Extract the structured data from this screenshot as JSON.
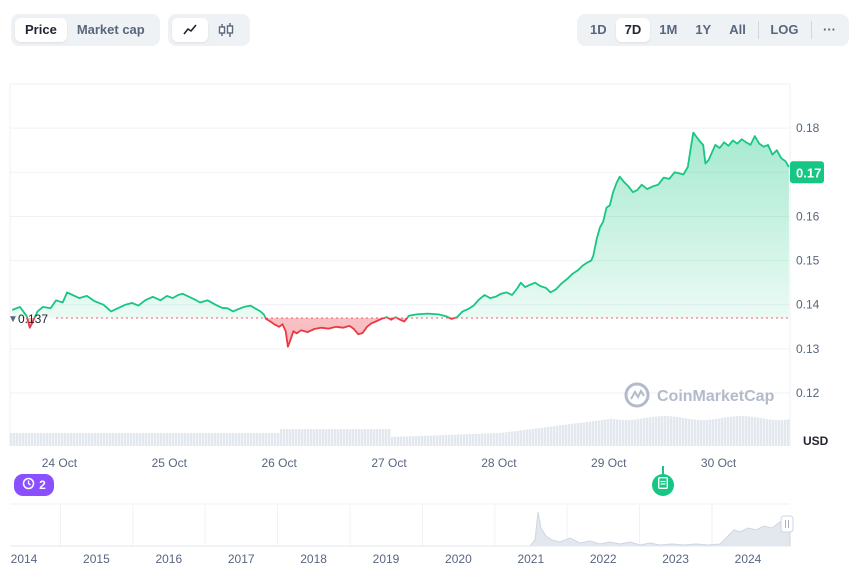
{
  "toolbar": {
    "metric_tabs": [
      {
        "label": "Price",
        "active": true
      },
      {
        "label": "Market cap",
        "active": false
      }
    ],
    "chart_style": {
      "line_icon": "line-chart-icon",
      "candle_icon": "candlestick-icon",
      "active": "line"
    },
    "ranges": [
      {
        "label": "1D",
        "active": false
      },
      {
        "label": "7D",
        "active": true
      },
      {
        "label": "1M",
        "active": false
      },
      {
        "label": "1Y",
        "active": false
      },
      {
        "label": "All",
        "active": false
      }
    ],
    "log_label": "LOG",
    "more_label": "···"
  },
  "watermark": "CoinMarketCap",
  "events_badge": {
    "icon": "history-icon",
    "count": "2"
  },
  "news_marker": {
    "icon": "document-icon"
  },
  "colors": {
    "up": "#16c784",
    "down": "#ea3943",
    "up_fill": "#16c784",
    "down_fill": "#ea3943",
    "grid": "#eff2f5",
    "volume": "#e3e7ee",
    "events_badge": "#8a4fff",
    "current_label_bg": "#16c784"
  },
  "chart_data": {
    "type": "line",
    "title": "",
    "ylabel": "",
    "currency_label": "USD",
    "reference_label": "0.137",
    "reference_value": 0.137,
    "current_label": "0.17",
    "current_value": 0.17,
    "ylim": [
      0.108,
      0.19
    ],
    "y_ticks": [
      "0.12",
      "0.13",
      "0.14",
      "0.15",
      "0.16",
      "0.17",
      "0.18"
    ],
    "x_range": [
      23.55,
      30.65
    ],
    "x_ticks": [
      {
        "label": "24 Oct",
        "x": 24
      },
      {
        "label": "25 Oct",
        "x": 25
      },
      {
        "label": "26 Oct",
        "x": 26
      },
      {
        "label": "27 Oct",
        "x": 27
      },
      {
        "label": "28 Oct",
        "x": 28
      },
      {
        "label": "29 Oct",
        "x": 29
      },
      {
        "label": "30 Oct",
        "x": 30
      }
    ],
    "x_unit": "day of October",
    "series": [
      {
        "values": [
          [
            23.57,
            0.1388
          ],
          [
            23.64,
            0.1395
          ],
          [
            23.7,
            0.1375
          ],
          [
            23.73,
            0.1348
          ],
          [
            23.75,
            0.1358
          ],
          [
            23.8,
            0.1385
          ],
          [
            23.85,
            0.1395
          ],
          [
            23.92,
            0.1392
          ],
          [
            23.97,
            0.141
          ],
          [
            24.03,
            0.1405
          ],
          [
            24.07,
            0.1428
          ],
          [
            24.12,
            0.1422
          ],
          [
            24.18,
            0.1415
          ],
          [
            24.25,
            0.142
          ],
          [
            24.32,
            0.1408
          ],
          [
            24.4,
            0.14
          ],
          [
            24.47,
            0.1385
          ],
          [
            24.53,
            0.1392
          ],
          [
            24.6,
            0.14
          ],
          [
            24.66,
            0.1404
          ],
          [
            24.72,
            0.1398
          ],
          [
            24.78,
            0.141
          ],
          [
            24.85,
            0.1418
          ],
          [
            24.92,
            0.141
          ],
          [
            24.98,
            0.142
          ],
          [
            25.03,
            0.1415
          ],
          [
            25.08,
            0.1422
          ],
          [
            25.12,
            0.1425
          ],
          [
            25.18,
            0.1418
          ],
          [
            25.23,
            0.1412
          ],
          [
            25.28,
            0.1405
          ],
          [
            25.35,
            0.141
          ],
          [
            25.42,
            0.14
          ],
          [
            25.48,
            0.1393
          ],
          [
            25.53,
            0.1392
          ],
          [
            25.58,
            0.1385
          ],
          [
            25.63,
            0.139
          ],
          [
            25.68,
            0.1395
          ],
          [
            25.74,
            0.1398
          ],
          [
            25.78,
            0.1392
          ],
          [
            25.83,
            0.1385
          ],
          [
            25.86,
            0.1378
          ],
          [
            25.88,
            0.1368
          ],
          [
            25.92,
            0.1362
          ],
          [
            25.96,
            0.1355
          ],
          [
            26.0,
            0.135
          ],
          [
            26.03,
            0.1356
          ],
          [
            26.06,
            0.134
          ],
          [
            26.08,
            0.1305
          ],
          [
            26.1,
            0.1318
          ],
          [
            26.13,
            0.134
          ],
          [
            26.16,
            0.1335
          ],
          [
            26.2,
            0.1342
          ],
          [
            26.26,
            0.1338
          ],
          [
            26.32,
            0.1345
          ],
          [
            26.38,
            0.1348
          ],
          [
            26.45,
            0.1346
          ],
          [
            26.52,
            0.135
          ],
          [
            26.58,
            0.1348
          ],
          [
            26.64,
            0.1352
          ],
          [
            26.68,
            0.1345
          ],
          [
            26.72,
            0.1333
          ],
          [
            26.76,
            0.1336
          ],
          [
            26.8,
            0.135
          ],
          [
            26.84,
            0.1358
          ],
          [
            26.88,
            0.1362
          ],
          [
            26.93,
            0.1368
          ],
          [
            26.98,
            0.1372
          ],
          [
            27.02,
            0.1366
          ],
          [
            27.06,
            0.1372
          ],
          [
            27.1,
            0.1366
          ],
          [
            27.14,
            0.1362
          ],
          [
            27.18,
            0.1375
          ],
          [
            27.25,
            0.1378
          ],
          [
            27.35,
            0.138
          ],
          [
            27.45,
            0.1378
          ],
          [
            27.52,
            0.1374
          ],
          [
            27.57,
            0.1368
          ],
          [
            27.62,
            0.1372
          ],
          [
            27.67,
            0.1385
          ],
          [
            27.72,
            0.139
          ],
          [
            27.77,
            0.1398
          ],
          [
            27.82,
            0.1412
          ],
          [
            27.87,
            0.1422
          ],
          [
            27.92,
            0.1415
          ],
          [
            27.97,
            0.1418
          ],
          [
            28.02,
            0.1425
          ],
          [
            28.07,
            0.1428
          ],
          [
            28.12,
            0.1422
          ],
          [
            28.17,
            0.1438
          ],
          [
            28.2,
            0.145
          ],
          [
            28.24,
            0.144
          ],
          [
            28.28,
            0.1445
          ],
          [
            28.33,
            0.145
          ],
          [
            28.38,
            0.1442
          ],
          [
            28.43,
            0.1438
          ],
          [
            28.47,
            0.1428
          ],
          [
            28.52,
            0.1435
          ],
          [
            28.57,
            0.1448
          ],
          [
            28.62,
            0.1458
          ],
          [
            28.67,
            0.147
          ],
          [
            28.72,
            0.1478
          ],
          [
            28.76,
            0.1488
          ],
          [
            28.8,
            0.1495
          ],
          [
            28.84,
            0.15
          ],
          [
            28.86,
            0.1512
          ],
          [
            28.89,
            0.1548
          ],
          [
            28.92,
            0.1575
          ],
          [
            28.95,
            0.1588
          ],
          [
            28.98,
            0.162
          ],
          [
            29.01,
            0.1625
          ],
          [
            29.04,
            0.1655
          ],
          [
            29.07,
            0.1675
          ],
          [
            29.1,
            0.169
          ],
          [
            29.14,
            0.1678
          ],
          [
            29.18,
            0.1668
          ],
          [
            29.22,
            0.1655
          ],
          [
            29.26,
            0.166
          ],
          [
            29.3,
            0.1672
          ],
          [
            29.35,
            0.1662
          ],
          [
            29.4,
            0.1668
          ],
          [
            29.45,
            0.1672
          ],
          [
            29.5,
            0.1688
          ],
          [
            29.55,
            0.1685
          ],
          [
            29.6,
            0.17
          ],
          [
            29.64,
            0.1698
          ],
          [
            29.68,
            0.1695
          ],
          [
            29.72,
            0.1712
          ],
          [
            29.75,
            0.176
          ],
          [
            29.77,
            0.179
          ],
          [
            29.8,
            0.178
          ],
          [
            29.83,
            0.177
          ],
          [
            29.86,
            0.1762
          ],
          [
            29.88,
            0.172
          ],
          [
            29.91,
            0.1728
          ],
          [
            29.94,
            0.1745
          ],
          [
            29.97,
            0.1762
          ],
          [
            30.01,
            0.1755
          ],
          [
            30.05,
            0.1768
          ],
          [
            30.09,
            0.176
          ],
          [
            30.13,
            0.1772
          ],
          [
            30.17,
            0.1765
          ],
          [
            30.21,
            0.1775
          ],
          [
            30.25,
            0.1768
          ],
          [
            30.29,
            0.1762
          ],
          [
            30.33,
            0.1782
          ],
          [
            30.37,
            0.1765
          ],
          [
            30.41,
            0.1758
          ],
          [
            30.45,
            0.1762
          ],
          [
            30.49,
            0.174
          ],
          [
            30.53,
            0.175
          ],
          [
            30.57,
            0.1732
          ],
          [
            30.61,
            0.1725
          ],
          [
            30.64,
            0.1712
          ]
        ]
      }
    ]
  },
  "navigator": {
    "year_labels": [
      "2014",
      "2015",
      "2016",
      "2017",
      "2018",
      "2019",
      "2020",
      "2021",
      "2022",
      "2023",
      "2024"
    ],
    "handle_icon": "drag-handle-icon"
  }
}
